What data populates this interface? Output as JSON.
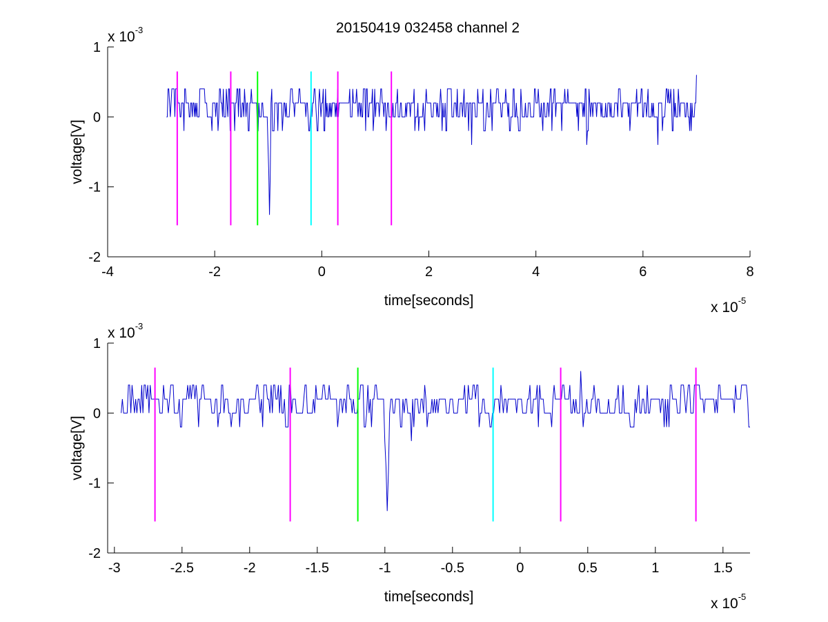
{
  "figure": {
    "title": "20150419 032458 channel 2",
    "background": "#ffffff",
    "trace_color": "#0000cc"
  },
  "chart_data": [
    {
      "type": "line",
      "title": "20150419 032458 channel 2",
      "xlabel": "time[seconds]",
      "ylabel": "voltage[V]",
      "xlim": [
        -4e-05,
        8e-05
      ],
      "ylim": [
        -0.002,
        0.001
      ],
      "x_ticks": [
        -4,
        -2,
        0,
        2,
        4,
        6,
        8
      ],
      "x_tick_labels": [
        "-4",
        "-2",
        "0",
        "2",
        "4",
        "6",
        "8"
      ],
      "x_exponent": {
        "base": "x 10",
        "power": "-5"
      },
      "y_ticks": [
        -2,
        -1,
        0,
        1
      ],
      "y_tick_labels": [
        "-2",
        "-1",
        "0",
        "1"
      ],
      "y_exponent": {
        "base": "x 10",
        "power": "-3"
      },
      "grid": false,
      "series": [
        {
          "color": "#0000cc",
          "x_start": -2.9e-05,
          "x_end": 7e-05,
          "baseline": 0.0,
          "noise_amplitude": 0.0004,
          "spikes": [
            {
              "x": -9.8e-06,
              "y": -0.0014
            },
            {
              "x": 2.8e-05,
              "y": -0.0004
            },
            {
              "x": 4.95e-05,
              "y": -0.0004
            },
            {
              "x": 6.28e-05,
              "y": -0.0004
            },
            {
              "x": 7e-05,
              "y": 0.0006
            }
          ]
        }
      ],
      "markers": [
        {
          "x": -2.7e-05,
          "color": "#ff00ff",
          "ymin": -0.00155,
          "ymax": 0.00065
        },
        {
          "x": -1.7e-05,
          "color": "#ff00ff",
          "ymin": -0.00155,
          "ymax": 0.00065
        },
        {
          "x": -1.2e-05,
          "color": "#00ff00",
          "ymin": -0.00155,
          "ymax": 0.00065
        },
        {
          "x": -2e-06,
          "color": "#00ffff",
          "ymin": -0.00155,
          "ymax": 0.00065
        },
        {
          "x": 3e-06,
          "color": "#ff00ff",
          "ymin": -0.00155,
          "ymax": 0.00065
        },
        {
          "x": 1.3e-05,
          "color": "#ff00ff",
          "ymin": -0.00155,
          "ymax": 0.00065
        }
      ]
    },
    {
      "type": "line",
      "title": "",
      "xlabel": "time[seconds]",
      "ylabel": "voltage[V]",
      "xlim": [
        -3.05e-05,
        1.7e-05
      ],
      "ylim": [
        -0.002,
        0.001
      ],
      "x_ticks": [
        -3,
        -2.5,
        -2,
        -1.5,
        -1,
        -0.5,
        0,
        0.5,
        1,
        1.5
      ],
      "x_tick_labels": [
        "-3",
        "-2.5",
        "-2",
        "-1.5",
        "-1",
        "-0.5",
        "0",
        "0.5",
        "1",
        "1.5"
      ],
      "x_exponent": {
        "base": "x 10",
        "power": "-5"
      },
      "y_ticks": [
        -2,
        -1,
        0,
        1
      ],
      "y_tick_labels": [
        "-2",
        "-1",
        "0",
        "1"
      ],
      "y_exponent": {
        "base": "x 10",
        "power": "-3"
      },
      "grid": false,
      "series": [
        {
          "color": "#0000cc",
          "x_start": -2.95e-05,
          "x_end": 1.7e-05,
          "baseline": 0.0,
          "noise_amplitude": 0.0004,
          "spikes": [
            {
              "x": -9.8e-06,
              "y": -0.0014
            },
            {
              "x": -8e-06,
              "y": -0.0004
            },
            {
              "x": 4.5e-06,
              "y": 0.0006
            }
          ]
        }
      ],
      "markers": [
        {
          "x": -2.7e-05,
          "color": "#ff00ff",
          "ymin": -0.00155,
          "ymax": 0.00065
        },
        {
          "x": -1.7e-05,
          "color": "#ff00ff",
          "ymin": -0.00155,
          "ymax": 0.00065
        },
        {
          "x": -1.2e-05,
          "color": "#00ff00",
          "ymin": -0.00155,
          "ymax": 0.00065
        },
        {
          "x": -2e-06,
          "color": "#00ffff",
          "ymin": -0.00155,
          "ymax": 0.00065
        },
        {
          "x": 3e-06,
          "color": "#ff00ff",
          "ymin": -0.00155,
          "ymax": 0.00065
        },
        {
          "x": 1.3e-05,
          "color": "#ff00ff",
          "ymin": -0.00155,
          "ymax": 0.00065
        }
      ]
    }
  ]
}
